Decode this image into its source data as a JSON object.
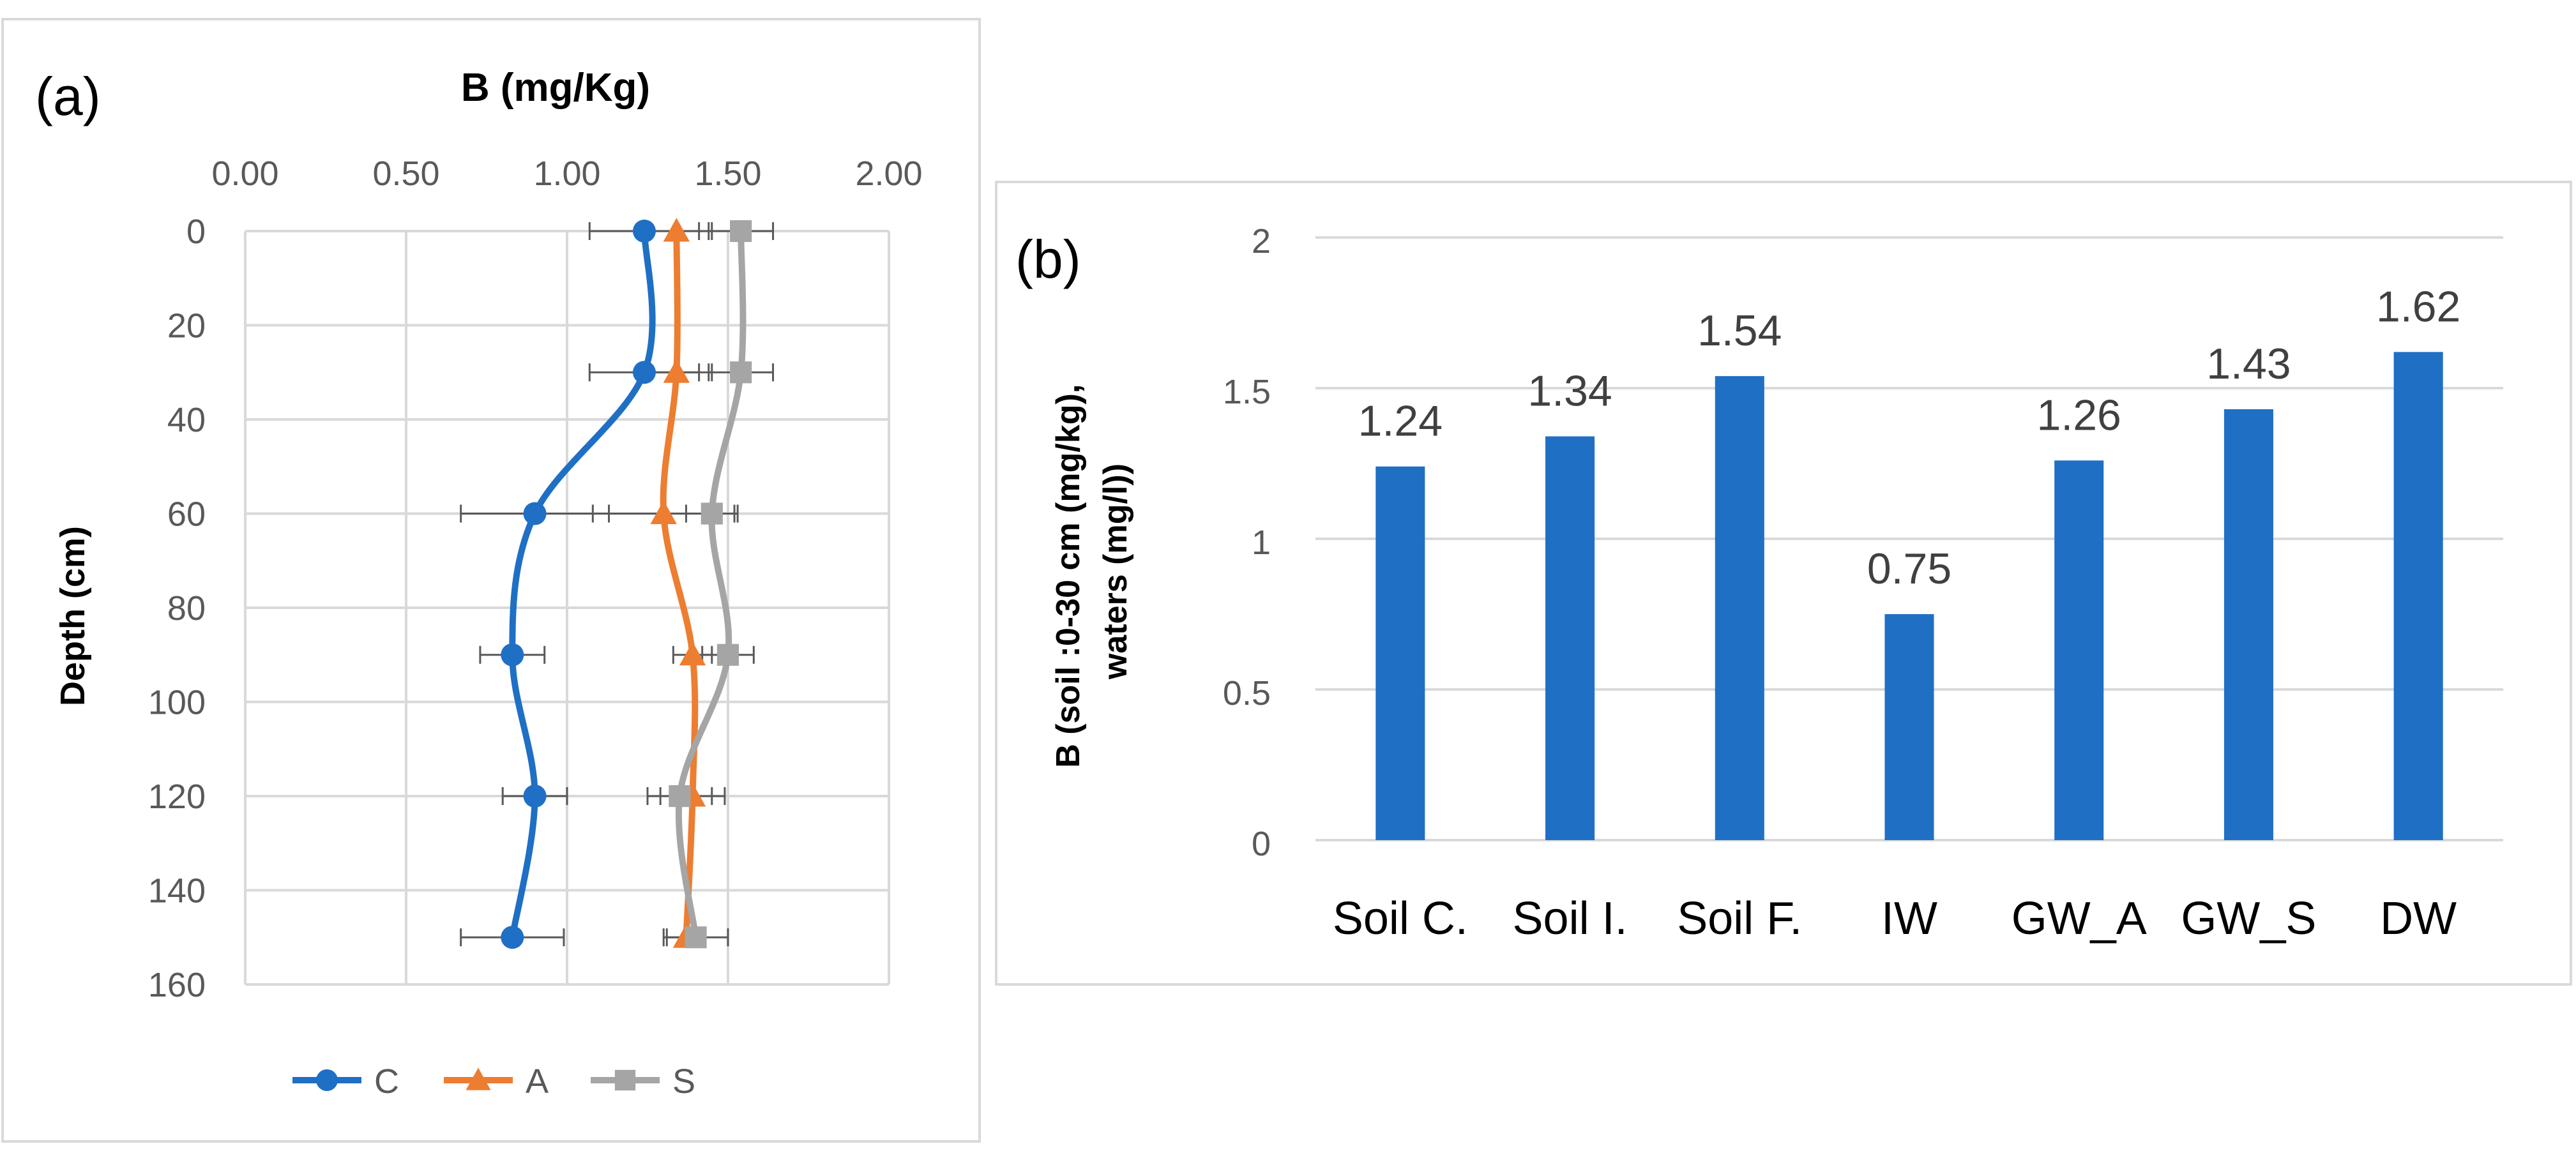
{
  "chart_data": [
    {
      "type": "line",
      "panel_label": "(a)",
      "title": "B (mg/Kg)",
      "xlabel": "B (mg/Kg)",
      "ylabel": "Depth (cm)",
      "x_axis_position": "top",
      "y_axis_inverted": true,
      "xlim": [
        0,
        2
      ],
      "ylim": [
        0,
        160
      ],
      "x_ticks": [
        "0.00",
        "0.50",
        "1.00",
        "1.50",
        "2.00"
      ],
      "y_ticks": [
        "0",
        "20",
        "40",
        "60",
        "80",
        "100",
        "120",
        "140",
        "160"
      ],
      "series": [
        {
          "name": "C",
          "color": "#1f6fc5",
          "marker": "circle",
          "points": [
            {
              "x": 1.24,
              "depth": 0,
              "err": 0.17
            },
            {
              "x": 1.24,
              "depth": 30,
              "err": 0.17
            },
            {
              "x": 0.9,
              "depth": 60,
              "err": 0.23
            },
            {
              "x": 0.83,
              "depth": 90,
              "err": 0.1
            },
            {
              "x": 0.9,
              "depth": 120,
              "err": 0.1
            },
            {
              "x": 0.83,
              "depth": 150,
              "err": 0.16
            }
          ]
        },
        {
          "name": "A",
          "color": "#ed7d31",
          "marker": "triangle",
          "points": [
            {
              "x": 1.34,
              "depth": 0,
              "err": 0.11
            },
            {
              "x": 1.34,
              "depth": 30,
              "err": 0.11
            },
            {
              "x": 1.3,
              "depth": 60,
              "err": 0.22
            },
            {
              "x": 1.39,
              "depth": 90,
              "err": 0.06
            },
            {
              "x": 1.39,
              "depth": 120,
              "err": 0.1
            },
            {
              "x": 1.37,
              "depth": 150,
              "err": 0.06
            }
          ]
        },
        {
          "name": "S",
          "color": "#a5a5a5",
          "marker": "square",
          "points": [
            {
              "x": 1.54,
              "depth": 0,
              "err": 0.1
            },
            {
              "x": 1.54,
              "depth": 30,
              "err": 0.1
            },
            {
              "x": 1.45,
              "depth": 60,
              "err": 0.08
            },
            {
              "x": 1.5,
              "depth": 90,
              "err": 0.08
            },
            {
              "x": 1.35,
              "depth": 120,
              "err": 0.1
            },
            {
              "x": 1.4,
              "depth": 150,
              "err": 0.1
            }
          ]
        }
      ],
      "legend": {
        "position": "bottom",
        "entries": [
          "C",
          "A",
          "S"
        ]
      }
    },
    {
      "type": "bar",
      "panel_label": "(b)",
      "ylabel": "B (soil :0-30 cm (mg/kg), waters (mg/l))",
      "ylim": [
        0,
        2
      ],
      "y_ticks": [
        "0",
        "0.5",
        "1",
        "1.5",
        "2"
      ],
      "categories": [
        "Soil C.",
        "Soil I.",
        "Soil F.",
        "IW",
        "GW_A",
        "GW_S",
        "DW"
      ],
      "values": [
        1.24,
        1.34,
        1.54,
        0.75,
        1.26,
        1.43,
        1.62
      ],
      "data_labels": [
        "1.24",
        "1.34",
        "1.54",
        "0.75",
        "1.26",
        "1.43",
        "1.62"
      ],
      "color": "#1f6fc5"
    }
  ]
}
